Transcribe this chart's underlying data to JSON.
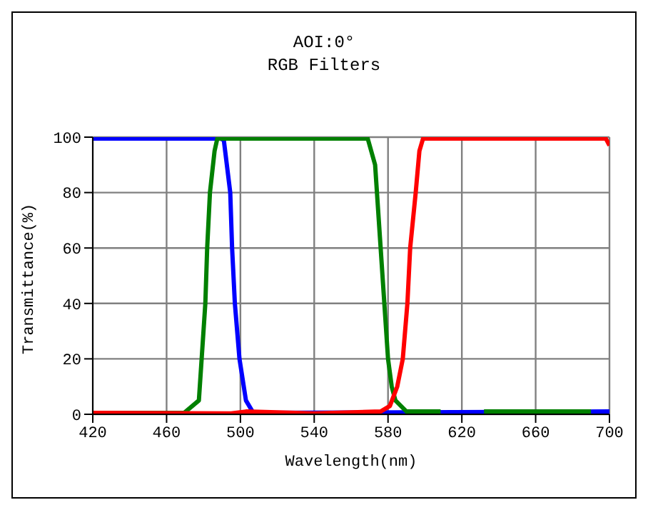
{
  "chart_data": {
    "type": "line",
    "title": "AOI:0°",
    "subtitle": "RGB Filters",
    "xlabel": "Wavelength(nm)",
    "ylabel": "Transmittance(%)",
    "xlim": [
      420,
      700
    ],
    "xticks": [
      420,
      460,
      500,
      540,
      580,
      620,
      660,
      700
    ],
    "ylim": [
      0,
      100
    ],
    "yticks": [
      0,
      20,
      40,
      60,
      80,
      100
    ],
    "grid": true,
    "legend": false,
    "marker": "none",
    "line_style": "solid",
    "series": [
      {
        "color": "#0000ff",
        "x": [
          420,
          460,
          489,
          491,
          494.5,
          495.5,
          497,
          499.5,
          503,
          507,
          700
        ],
        "values": [
          99.5,
          99.5,
          99.5,
          99,
          80,
          60,
          40,
          20,
          5,
          0.5,
          1
        ]
      },
      {
        "color": "#008000",
        "x": [
          420,
          469.5,
          477.5,
          479,
          481,
          482,
          483.5,
          486,
          487.5,
          520,
          569,
          573,
          574,
          576,
          578,
          580,
          582,
          584,
          590,
          608.5,
          609,
          632,
          660,
          690
        ],
        "values": [
          0.5,
          0.5,
          5,
          20,
          40,
          60,
          80,
          95,
          99.5,
          99.5,
          99.5,
          90,
          80,
          60,
          40,
          20,
          10,
          5,
          1,
          1,
          null,
          1,
          1,
          1
        ]
      },
      {
        "color": "#ff0000",
        "x": [
          420,
          495,
          503,
          540,
          576,
          581,
          585,
          588,
          590.5,
          592,
          595,
          597,
          599,
          650,
          698,
          700
        ],
        "values": [
          0.5,
          0.3,
          1,
          0.3,
          1,
          3,
          10,
          20,
          40,
          60,
          80,
          95,
          99.5,
          99.5,
          99.5,
          97
        ]
      }
    ]
  }
}
